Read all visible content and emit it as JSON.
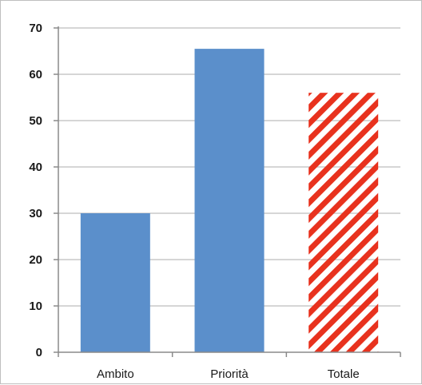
{
  "chart_data": {
    "type": "bar",
    "categories": [
      "Ambito",
      "Priorità",
      "Totale"
    ],
    "values": [
      30,
      65.5,
      56
    ],
    "bar_styles": [
      "solid",
      "solid",
      "hatched"
    ],
    "colors": {
      "bar": "#5b8fcb",
      "hatch": "#e8321e",
      "grid": "#c8c8c8",
      "axis": "#8a8a8a"
    },
    "ylim": [
      0,
      70
    ],
    "yticks": [
      "0",
      "10",
      "20",
      "30",
      "40",
      "50",
      "60",
      "70"
    ],
    "grid": true,
    "title": "",
    "xlabel": "",
    "ylabel": ""
  }
}
